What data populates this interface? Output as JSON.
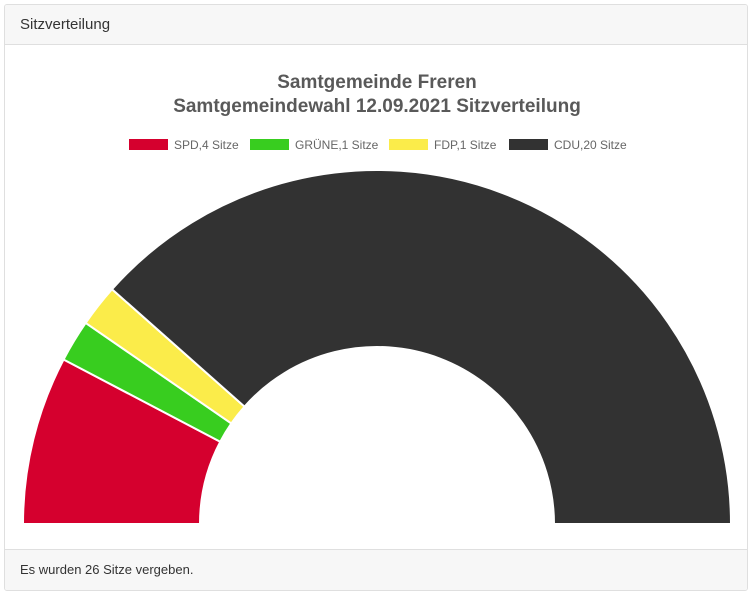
{
  "header": {
    "title": "Sitzverteilung"
  },
  "footer": {
    "text": "Es wurden 26 Sitze vergeben."
  },
  "chart_data": {
    "type": "pie",
    "variant": "half-doughnut",
    "title": [
      "Samtgemeinde Freren",
      "Samtgemeindewahl 12.09.2021 Sitzverteilung"
    ],
    "legend_position": "top",
    "slices": [
      {
        "label": "SPD",
        "value": 4,
        "legend": "SPD,4 Sitze",
        "color": "#d5002e"
      },
      {
        "label": "GRÜNE",
        "value": 1,
        "legend": "GRÜNE,1 Sitze",
        "color": "#38cd1f"
      },
      {
        "label": "FDP",
        "value": 1,
        "legend": "FDP,1 Sitze",
        "color": "#fbec4a"
      },
      {
        "label": "CDU",
        "value": 20,
        "legend": "CDU,20 Sitze",
        "color": "#323232"
      }
    ]
  }
}
